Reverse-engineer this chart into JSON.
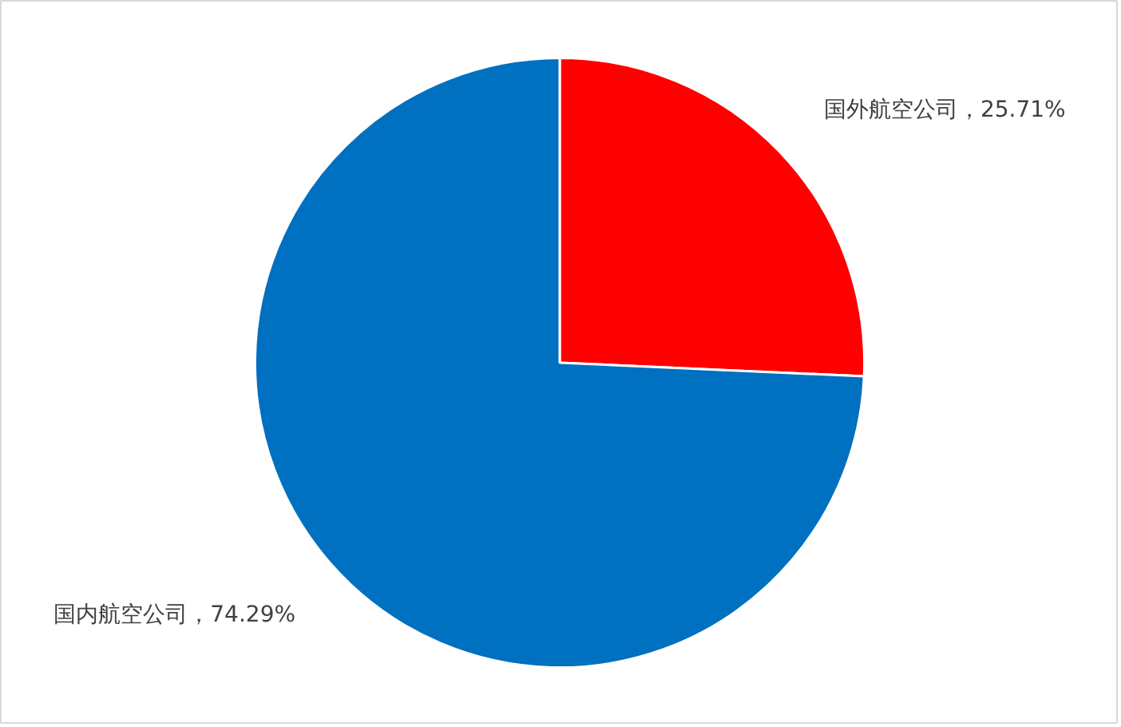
{
  "chart_data": {
    "type": "pie",
    "categories": [
      "国外航空公司",
      "国内航空公司"
    ],
    "values": [
      25.71,
      74.29
    ],
    "colors": [
      "#ff0000",
      "#0070c0"
    ],
    "value_labels": [
      "25.71%",
      "74.29%"
    ]
  }
}
